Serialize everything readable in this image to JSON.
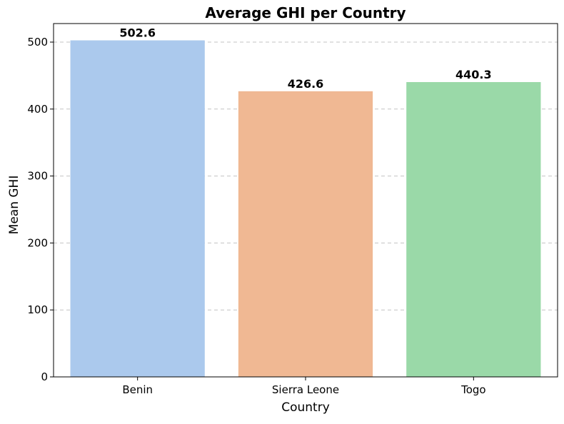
{
  "chart_data": {
    "type": "bar",
    "title": "Average GHI per Country",
    "xlabel": "Country",
    "ylabel": "Mean GHI",
    "categories": [
      "Benin",
      "Sierra Leone",
      "Togo"
    ],
    "values": [
      502.6,
      426.6,
      440.3
    ],
    "value_labels": [
      "502.6",
      "426.6",
      "440.3"
    ],
    "colors": [
      "#abc9ed",
      "#f0b893",
      "#9ad9a8"
    ],
    "ylim": [
      0,
      527.7
    ],
    "yticks": [
      0,
      100,
      200,
      300,
      400,
      500
    ],
    "ytick_labels": [
      "0",
      "100",
      "200",
      "300",
      "400",
      "500"
    ],
    "grid": {
      "axis": "y",
      "style": "dashed"
    },
    "legend": "none"
  }
}
